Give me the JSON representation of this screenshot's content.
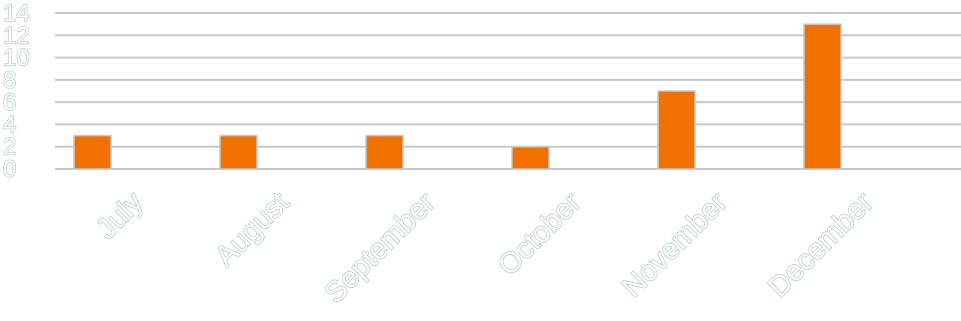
{
  "chart_data": {
    "type": "bar",
    "categories": [
      "July",
      "August",
      "September",
      "October",
      "November",
      "December"
    ],
    "values": [
      3,
      3,
      3,
      2,
      7,
      13
    ],
    "title": "",
    "xlabel": "",
    "ylabel": "",
    "ylim": [
      0,
      14
    ],
    "yticks": [
      "0",
      "2",
      "4",
      "6",
      "8",
      "10",
      "12",
      "14"
    ],
    "grid": true,
    "legend": "none",
    "colors": {
      "bar": "#f07000",
      "bar_border": "#c9c9c9",
      "grid": "#c8c8c8",
      "label_outline": "#a9c3bb"
    }
  }
}
